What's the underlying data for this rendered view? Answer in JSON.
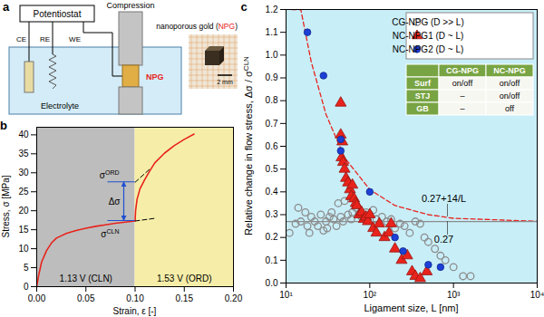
{
  "panel_a": {
    "label": "a",
    "potentiostat": "Potentiostat",
    "electrodes": [
      "CE",
      "RE",
      "WE"
    ],
    "compression": "Compression",
    "sample": "NPG",
    "electrolyte": "Electrolyte",
    "photo_caption": "nanoporous gold (NPG)",
    "photo_caption_highlight": "NPG",
    "scale_bar": "2 mm"
  },
  "chart_data": [
    {
      "label": "b",
      "type": "line",
      "xlabel": "Strain, ε [-]",
      "ylabel": "Stress, σ [MPa]",
      "xlim": [
        0,
        0.2
      ],
      "ylim": [
        0,
        42
      ],
      "xticks": [
        {
          "value": 0,
          "label": "0.00"
        },
        {
          "value": 0.05,
          "label": "0.05"
        },
        {
          "value": 0.1,
          "label": "0.10"
        },
        {
          "value": 0.15,
          "label": "0.15"
        },
        {
          "value": 0.2,
          "label": "0.20"
        }
      ],
      "yticks": [
        0,
        5,
        10,
        15,
        20,
        25,
        30,
        35,
        40
      ],
      "regions": [
        {
          "name": "1.13 V (CLN)",
          "x": [
            0,
            0.1
          ],
          "color": "#bdbdbd"
        },
        {
          "name": "1.53 V (ORD)",
          "x": [
            0.1,
            0.2
          ],
          "color": "#f6eea8"
        }
      ],
      "series": [
        {
          "color": "#e8231c",
          "line_style": "solid",
          "x": [
            0,
            0.002,
            0.005,
            0.01,
            0.015,
            0.02,
            0.03,
            0.04,
            0.05,
            0.06,
            0.07,
            0.08,
            0.09,
            0.1,
            0.1005,
            0.102,
            0.105,
            0.11,
            0.115,
            0.12,
            0.13,
            0.14,
            0.15,
            0.16
          ],
          "values": [
            0,
            3,
            6.5,
            9.5,
            11.5,
            12.8,
            14,
            14.8,
            15.4,
            15.9,
            16.3,
            16.7,
            17.0,
            17.3,
            20,
            23,
            25.8,
            28.3,
            30.5,
            32.6,
            35.2,
            37.2,
            38.8,
            40.2
          ]
        },
        {
          "color": "#000000",
          "line_style": "dashed",
          "x": [
            0.1,
            0.115
          ],
          "values": [
            27.5,
            31
          ]
        },
        {
          "color": "#000000",
          "line_style": "dashed",
          "x": [
            0.1,
            0.12
          ],
          "values": [
            17.3,
            18.0
          ]
        }
      ],
      "levels": [
        {
          "symbol": "σ",
          "superscript": "ORD",
          "value": 27.5
        },
        {
          "symbol": "σ",
          "superscript": "CLN",
          "value": 17.3
        }
      ],
      "stress_gap": {
        "label": "Δσ",
        "from": 17.3,
        "to": 27.5,
        "color": "#1f4fd0"
      }
    },
    {
      "label": "c",
      "type": "scatter",
      "log": "x",
      "xlabel": "Ligament size, L [nm]",
      "ylabel": {
        "text": "Relative change in flow stress, Δσ / σ",
        "superscript": "CLN"
      },
      "xlim": [
        10,
        10000
      ],
      "ylim": [
        0,
        1.2
      ],
      "xticks": [
        {
          "value": 10,
          "label": "10¹"
        },
        {
          "value": 100,
          "label": "10²"
        },
        {
          "value": 1000,
          "label": "10³"
        },
        {
          "value": 10000,
          "label": "10⁴"
        }
      ],
      "yticks": [
        {
          "value": 0,
          "label": "0.0"
        },
        {
          "value": 0.1,
          "label": "0.1"
        },
        {
          "value": 0.2,
          "label": "0.2"
        },
        {
          "value": 0.3,
          "label": "0.3"
        },
        {
          "value": 0.4,
          "label": "0.4"
        },
        {
          "value": 0.5,
          "label": "0.5"
        },
        {
          "value": 0.6,
          "label": "0.6"
        },
        {
          "value": 0.7,
          "label": "0.7"
        },
        {
          "value": 0.8,
          "label": "0.8"
        },
        {
          "value": 0.9,
          "label": "0.9"
        },
        {
          "value": 1,
          "label": "1.0"
        },
        {
          "value": 1.1,
          "label": "1.1"
        },
        {
          "value": 1.2,
          "label": "1.2"
        }
      ],
      "legend": "upper right",
      "series": [
        {
          "name": "CG-NPG (D >> L)",
          "type": "scatter",
          "marker": "circle_open",
          "color": "#8c8c8c",
          "x": [
            9,
            9,
            11,
            13,
            14,
            15,
            17,
            18,
            19,
            20,
            22,
            24,
            26,
            28,
            30,
            31,
            33,
            35,
            37,
            40,
            42,
            45,
            48,
            50,
            55,
            60,
            62,
            68,
            75,
            80,
            90,
            100,
            110,
            120,
            140,
            160,
            180,
            200,
            230,
            260,
            300,
            350,
            400,
            450,
            500,
            600,
            700,
            800,
            1000,
            1300,
            1600
          ],
          "values": [
            0.28,
            0.25,
            0.22,
            0.26,
            0.33,
            0.27,
            0.31,
            0.25,
            0.22,
            0.29,
            0.27,
            0.25,
            0.3,
            0.23,
            0.27,
            0.24,
            0.29,
            0.31,
            0.28,
            0.25,
            0.35,
            0.29,
            0.27,
            0.36,
            0.3,
            0.28,
            0.31,
            0.33,
            0.3,
            0.29,
            0.31,
            0.3,
            0.32,
            0.28,
            0.29,
            0.27,
            0.28,
            0.24,
            0.26,
            0.25,
            0.22,
            0.27,
            0.26,
            0.2,
            0.18,
            0.15,
            0.12,
            0.1,
            0.07,
            0.03,
            0.03
          ]
        },
        {
          "name": "NC-NPG1 (D ~ L)",
          "type": "scatter",
          "marker": "triangle",
          "color": "#e8231c",
          "x": [
            45,
            45,
            47,
            46,
            48,
            50,
            52,
            55,
            58,
            60,
            62,
            65,
            68,
            70,
            75,
            80,
            85,
            90,
            95,
            100,
            110,
            120,
            130,
            150,
            170,
            180,
            200,
            240,
            280,
            320,
            350,
            400,
            480
          ],
          "values": [
            0.79,
            0.65,
            0.62,
            0.55,
            0.53,
            0.5,
            0.46,
            0.44,
            0.41,
            0.38,
            0.43,
            0.37,
            0.35,
            0.34,
            0.3,
            0.31,
            0.28,
            0.29,
            0.27,
            0.3,
            0.24,
            0.22,
            0.26,
            0.2,
            0.22,
            0.26,
            0.15,
            0.1,
            0.12,
            0.05,
            0.03,
            0.02,
            0.05
          ]
        },
        {
          "name": "NC-NPG2 (D ~ L)",
          "type": "scatter",
          "marker": "circle",
          "color": "#1c3fd6",
          "x": [
            18,
            28,
            45,
            45,
            100,
            200,
            250,
            500,
            700
          ],
          "values": [
            1.1,
            0.91,
            0.63,
            0.58,
            0.4,
            0.2,
            0.14,
            0.08,
            0.07
          ]
        },
        {
          "name": "0.27+14/L",
          "type": "line",
          "line_style": "dashed",
          "color": "#e8231c",
          "x": [
            11.7,
            15,
            20,
            30,
            50,
            100,
            200,
            500,
            1000,
            10000
          ],
          "values": [
            1.2,
            1.2,
            0.97,
            0.74,
            0.55,
            0.41,
            0.34,
            0.3,
            0.284,
            0.271
          ]
        },
        {
          "name": "0.27",
          "type": "line",
          "line_style": "solid",
          "color": "#8c8c8c",
          "x": [
            10,
            10000
          ],
          "values": [
            0.27,
            0.27
          ]
        }
      ],
      "table": {
        "header": [
          "CG-NPG",
          "NC-NPG"
        ],
        "rows": [
          [
            "Surf",
            "on/off",
            "on/off"
          ],
          [
            "STJ",
            "–",
            "on/off"
          ],
          [
            "GB",
            "–",
            "off"
          ]
        ]
      }
    }
  ]
}
